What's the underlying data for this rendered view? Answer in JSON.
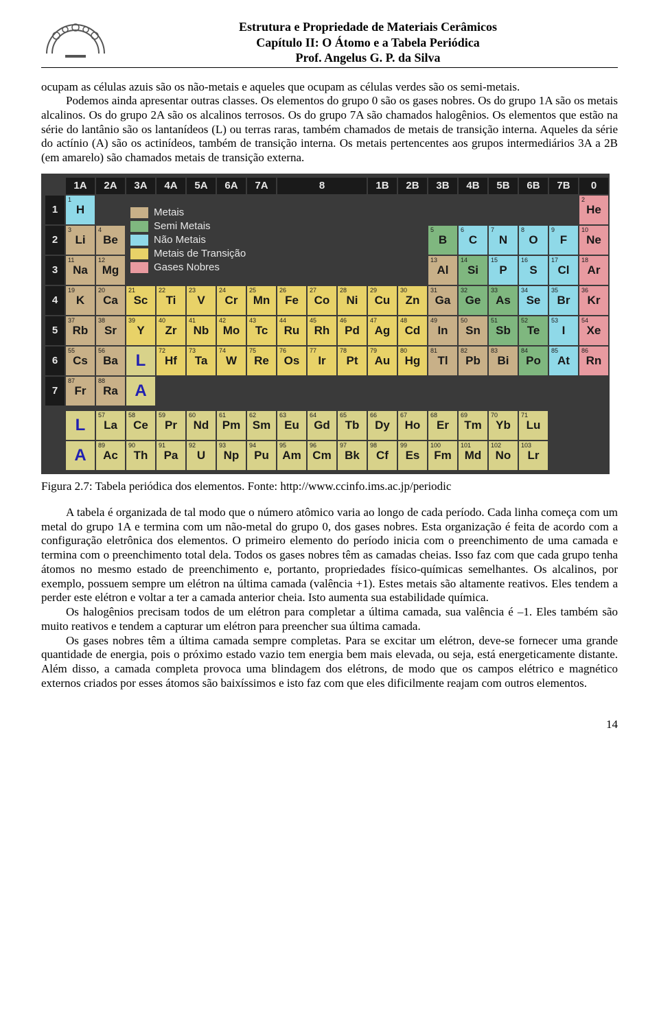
{
  "header": {
    "line1": "Estrutura e Propriedade de Materiais Cerâmicos",
    "line2": "Capítulo II: O Átomo e a Tabela Periódica",
    "line3": "Prof. Angelus G. P. da Silva"
  },
  "paragraphs": {
    "p1a": "ocupam as células azuis são os não-metais e aqueles que ocupam as células verdes são os semi-metais.",
    "p1b": "Podemos ainda apresentar outras classes. Os elementos do grupo 0 são os gases nobres. Os do grupo 1A são os metais alcalinos. Os do grupo 2A são os alcalinos terrosos. Os do grupo 7A são chamados halogênios. Os elementos que estão na série do lantânio são os lantanídeos (L) ou terras raras, também chamados de metais de transição interna. Aqueles da série do actínio (A) são os actinídeos, também de transição interna. Os metais pertencentes aos grupos intermediários 3A a 2B (em amarelo) são chamados metais de transição externa.",
    "caption": "Figura 2.7: Tabela periódica dos elementos. Fonte: http://www.ccinfo.ims.ac.jp/periodic",
    "p2": "A tabela é organizada de tal modo que o número atômico varia ao longo de cada período. Cada linha começa com um metal do grupo 1A e termina com um não-metal do grupo 0, dos gases nobres. Esta organização é feita de acordo com a configuração eletrônica dos elementos. O primeiro elemento do período inicia com o preenchimento de uma camada e termina com o preenchimento total dela. Todos os gases nobres têm as camadas cheias. Isso faz com que cada grupo tenha átomos no mesmo estado de preenchimento  e, portanto, propriedades físico-químicas semelhantes. Os alcalinos, por exemplo, possuem sempre um elétron na última camada (valência +1). Estes metais são altamente reativos. Eles tendem a perder este elétron e voltar a ter a camada anterior cheia. Isto aumenta sua estabilidade química.",
    "p3": "Os halogênios precisam todos de um elétron para completar a última camada, sua valência é –1. Eles também são muito reativos e tendem a capturar um elétron para preencher sua última camada.",
    "p4": "Os gases nobres têm a última camada sempre completas. Para se excitar um elétron, deve-se fornecer uma grande quantidade de energia, pois o próximo estado vazio tem energia bem mais elevada, ou seja, está energeticamente distante. Além disso, a camada completa provoca uma blindagem dos elétrons, de modo que os campos elétrico e magnético externos criados por esses átomos são baixíssimos e isto faz com que eles dificilmente reajam com outros elementos."
  },
  "page_number": "14",
  "colors": {
    "nonmetal": "#8fd9e8",
    "semimetal": "#7fb77f",
    "metal": "#c8b088",
    "transition": "#e8d268",
    "noble": "#e89aa0",
    "fblock": "#d8d28a",
    "header_bg": "#1a1a1a",
    "table_bg": "#3a3a3a"
  },
  "legend": [
    {
      "label": "Metais",
      "color": "#c8b088"
    },
    {
      "label": "Semi Metais",
      "color": "#7fb77f"
    },
    {
      "label": "Não Metais",
      "color": "#8fd9e8"
    },
    {
      "label": "Metais de Transição",
      "color": "#e8d268"
    },
    {
      "label": "Gases Nobres",
      "color": "#e89aa0"
    }
  ],
  "col_headers": [
    "1A",
    "2A",
    "3A",
    "4A",
    "5A",
    "6A",
    "7A",
    "8",
    "1B",
    "2B",
    "3B",
    "4B",
    "5B",
    "6B",
    "7B",
    "0"
  ],
  "row_headers": [
    "1",
    "2",
    "3",
    "4",
    "5",
    "6",
    "7"
  ],
  "elements": {
    "r1": [
      {
        "n": "1",
        "s": "H",
        "c": "nonmetal"
      },
      null,
      null,
      null,
      null,
      null,
      null,
      null,
      null,
      null,
      null,
      null,
      null,
      null,
      null,
      null,
      null,
      {
        "n": "2",
        "s": "He",
        "c": "noble"
      }
    ],
    "r2": [
      {
        "n": "3",
        "s": "Li",
        "c": "metal"
      },
      {
        "n": "4",
        "s": "Be",
        "c": "metal"
      },
      null,
      null,
      null,
      null,
      null,
      null,
      null,
      null,
      null,
      null,
      {
        "n": "5",
        "s": "B",
        "c": "semimetal"
      },
      {
        "n": "6",
        "s": "C",
        "c": "nonmetal"
      },
      {
        "n": "7",
        "s": "N",
        "c": "nonmetal"
      },
      {
        "n": "8",
        "s": "O",
        "c": "nonmetal"
      },
      {
        "n": "9",
        "s": "F",
        "c": "nonmetal"
      },
      {
        "n": "10",
        "s": "Ne",
        "c": "noble"
      }
    ],
    "r3": [
      {
        "n": "11",
        "s": "Na",
        "c": "metal"
      },
      {
        "n": "12",
        "s": "Mg",
        "c": "metal"
      },
      null,
      null,
      null,
      null,
      null,
      null,
      null,
      null,
      null,
      null,
      {
        "n": "13",
        "s": "Al",
        "c": "metal"
      },
      {
        "n": "14",
        "s": "Si",
        "c": "semimetal"
      },
      {
        "n": "15",
        "s": "P",
        "c": "nonmetal"
      },
      {
        "n": "16",
        "s": "S",
        "c": "nonmetal"
      },
      {
        "n": "17",
        "s": "Cl",
        "c": "nonmetal"
      },
      {
        "n": "18",
        "s": "Ar",
        "c": "noble"
      }
    ],
    "r4": [
      {
        "n": "19",
        "s": "K",
        "c": "metal"
      },
      {
        "n": "20",
        "s": "Ca",
        "c": "metal"
      },
      {
        "n": "21",
        "s": "Sc",
        "c": "transition"
      },
      {
        "n": "22",
        "s": "Ti",
        "c": "transition"
      },
      {
        "n": "23",
        "s": "V",
        "c": "transition"
      },
      {
        "n": "24",
        "s": "Cr",
        "c": "transition"
      },
      {
        "n": "25",
        "s": "Mn",
        "c": "transition"
      },
      {
        "n": "26",
        "s": "Fe",
        "c": "transition"
      },
      {
        "n": "27",
        "s": "Co",
        "c": "transition"
      },
      {
        "n": "28",
        "s": "Ni",
        "c": "transition"
      },
      {
        "n": "29",
        "s": "Cu",
        "c": "transition"
      },
      {
        "n": "30",
        "s": "Zn",
        "c": "transition"
      },
      {
        "n": "31",
        "s": "Ga",
        "c": "metal"
      },
      {
        "n": "32",
        "s": "Ge",
        "c": "semimetal"
      },
      {
        "n": "33",
        "s": "As",
        "c": "semimetal"
      },
      {
        "n": "34",
        "s": "Se",
        "c": "nonmetal"
      },
      {
        "n": "35",
        "s": "Br",
        "c": "nonmetal"
      },
      {
        "n": "36",
        "s": "Kr",
        "c": "noble"
      }
    ],
    "r5": [
      {
        "n": "37",
        "s": "Rb",
        "c": "metal"
      },
      {
        "n": "38",
        "s": "Sr",
        "c": "metal"
      },
      {
        "n": "39",
        "s": "Y",
        "c": "transition"
      },
      {
        "n": "40",
        "s": "Zr",
        "c": "transition"
      },
      {
        "n": "41",
        "s": "Nb",
        "c": "transition"
      },
      {
        "n": "42",
        "s": "Mo",
        "c": "transition"
      },
      {
        "n": "43",
        "s": "Tc",
        "c": "transition"
      },
      {
        "n": "44",
        "s": "Ru",
        "c": "transition"
      },
      {
        "n": "45",
        "s": "Rh",
        "c": "transition"
      },
      {
        "n": "46",
        "s": "Pd",
        "c": "transition"
      },
      {
        "n": "47",
        "s": "Ag",
        "c": "transition"
      },
      {
        "n": "48",
        "s": "Cd",
        "c": "transition"
      },
      {
        "n": "49",
        "s": "In",
        "c": "metal"
      },
      {
        "n": "50",
        "s": "Sn",
        "c": "metal"
      },
      {
        "n": "51",
        "s": "Sb",
        "c": "semimetal"
      },
      {
        "n": "52",
        "s": "Te",
        "c": "semimetal"
      },
      {
        "n": "53",
        "s": "I",
        "c": "nonmetal"
      },
      {
        "n": "54",
        "s": "Xe",
        "c": "noble"
      }
    ],
    "r6": [
      {
        "n": "55",
        "s": "Cs",
        "c": "metal"
      },
      {
        "n": "56",
        "s": "Ba",
        "c": "metal"
      },
      {
        "n": "",
        "s": "L",
        "c": "fblock",
        "letter": true
      },
      {
        "n": "72",
        "s": "Hf",
        "c": "transition"
      },
      {
        "n": "73",
        "s": "Ta",
        "c": "transition"
      },
      {
        "n": "74",
        "s": "W",
        "c": "transition"
      },
      {
        "n": "75",
        "s": "Re",
        "c": "transition"
      },
      {
        "n": "76",
        "s": "Os",
        "c": "transition"
      },
      {
        "n": "77",
        "s": "Ir",
        "c": "transition"
      },
      {
        "n": "78",
        "s": "Pt",
        "c": "transition"
      },
      {
        "n": "79",
        "s": "Au",
        "c": "transition"
      },
      {
        "n": "80",
        "s": "Hg",
        "c": "transition"
      },
      {
        "n": "81",
        "s": "Tl",
        "c": "metal"
      },
      {
        "n": "82",
        "s": "Pb",
        "c": "metal"
      },
      {
        "n": "83",
        "s": "Bi",
        "c": "metal"
      },
      {
        "n": "84",
        "s": "Po",
        "c": "semimetal"
      },
      {
        "n": "85",
        "s": "At",
        "c": "nonmetal"
      },
      {
        "n": "86",
        "s": "Rn",
        "c": "noble"
      }
    ],
    "r7": [
      {
        "n": "87",
        "s": "Fr",
        "c": "metal"
      },
      {
        "n": "88",
        "s": "Ra",
        "c": "metal"
      },
      {
        "n": "",
        "s": "A",
        "c": "fblock",
        "letter": true
      },
      null,
      null,
      null,
      null,
      null,
      null,
      null,
      null,
      null,
      null,
      null,
      null,
      null,
      null,
      null
    ]
  },
  "fblock": {
    "L": {
      "label": "L",
      "items": [
        {
          "n": "57",
          "s": "La"
        },
        {
          "n": "58",
          "s": "Ce"
        },
        {
          "n": "59",
          "s": "Pr"
        },
        {
          "n": "60",
          "s": "Nd"
        },
        {
          "n": "61",
          "s": "Pm"
        },
        {
          "n": "62",
          "s": "Sm"
        },
        {
          "n": "63",
          "s": "Eu"
        },
        {
          "n": "64",
          "s": "Gd"
        },
        {
          "n": "65",
          "s": "Tb"
        },
        {
          "n": "66",
          "s": "Dy"
        },
        {
          "n": "67",
          "s": "Ho"
        },
        {
          "n": "68",
          "s": "Er"
        },
        {
          "n": "69",
          "s": "Tm"
        },
        {
          "n": "70",
          "s": "Yb"
        },
        {
          "n": "71",
          "s": "Lu"
        }
      ]
    },
    "A": {
      "label": "A",
      "items": [
        {
          "n": "89",
          "s": "Ac"
        },
        {
          "n": "90",
          "s": "Th"
        },
        {
          "n": "91",
          "s": "Pa"
        },
        {
          "n": "92",
          "s": "U"
        },
        {
          "n": "93",
          "s": "Np"
        },
        {
          "n": "94",
          "s": "Pu"
        },
        {
          "n": "95",
          "s": "Am"
        },
        {
          "n": "96",
          "s": "Cm"
        },
        {
          "n": "97",
          "s": "Bk"
        },
        {
          "n": "98",
          "s": "Cf"
        },
        {
          "n": "99",
          "s": "Es"
        },
        {
          "n": "100",
          "s": "Fm"
        },
        {
          "n": "101",
          "s": "Md"
        },
        {
          "n": "102",
          "s": "No"
        },
        {
          "n": "103",
          "s": "Lr"
        }
      ]
    }
  }
}
